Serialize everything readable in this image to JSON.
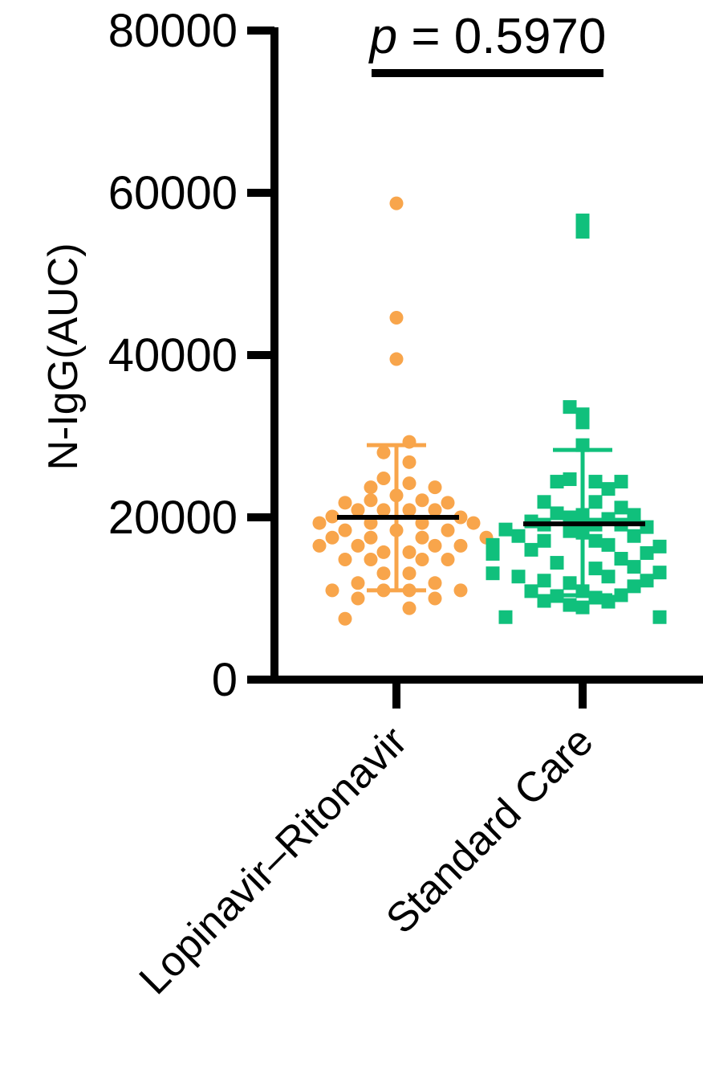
{
  "chart_data": {
    "type": "scatter",
    "ylabel": "N-IgG(AUC)",
    "ylim": [
      0,
      80000
    ],
    "yticks": [
      0,
      20000,
      40000,
      60000,
      80000
    ],
    "ytick_labels": [
      "0",
      "20000",
      "40000",
      "60000",
      "80000"
    ],
    "categories": [
      "Lopinavir–Ritonavir",
      "Standard Care"
    ],
    "annotation": {
      "p_symbol": "p",
      "p_text": " = 0.5970"
    },
    "colors": {
      "lopinavir": "#f8a54b",
      "standard": "#10c07c",
      "axis": "#000000"
    },
    "series": [
      {
        "marker": "circle",
        "color": "#f8a54b",
        "mean": 20000,
        "sd_upper": 28900,
        "sd_lower": 11000,
        "points": [
          {
            "dx": 0,
            "y": 58700
          },
          {
            "dx": 0,
            "y": 44600
          },
          {
            "dx": 0,
            "y": 39500
          },
          {
            "dx": 1,
            "y": 29300
          },
          {
            "dx": -1,
            "y": 28000
          },
          {
            "dx": 1,
            "y": 26800
          },
          {
            "dx": -1,
            "y": 24800
          },
          {
            "dx": 1,
            "y": 24200
          },
          {
            "dx": -2,
            "y": 23700
          },
          {
            "dx": 3,
            "y": 23700
          },
          {
            "dx": 0,
            "y": 22700
          },
          {
            "dx": -2,
            "y": 22100
          },
          {
            "dx": 2,
            "y": 22100
          },
          {
            "dx": -4,
            "y": 21800
          },
          {
            "dx": 4,
            "y": 21800
          },
          {
            "dx": -3,
            "y": 20900
          },
          {
            "dx": -1,
            "y": 20900
          },
          {
            "dx": 1,
            "y": 20900
          },
          {
            "dx": 3,
            "y": 20900
          },
          {
            "dx": -5,
            "y": 20100
          },
          {
            "dx": 5,
            "y": 20000
          },
          {
            "dx": -6,
            "y": 19300
          },
          {
            "dx": 6,
            "y": 19300
          },
          {
            "dx": -2,
            "y": 19300
          },
          {
            "dx": 2,
            "y": 19300
          },
          {
            "dx": -4,
            "y": 18400
          },
          {
            "dx": 0,
            "y": 18400
          },
          {
            "dx": 4,
            "y": 18400
          },
          {
            "dx": -5,
            "y": 17500
          },
          {
            "dx": 7,
            "y": 17500
          },
          {
            "dx": -2,
            "y": 17500
          },
          {
            "dx": 2,
            "y": 17500
          },
          {
            "dx": -3,
            "y": 16500
          },
          {
            "dx": 3,
            "y": 16500
          },
          {
            "dx": -6,
            "y": 16500
          },
          {
            "dx": 5,
            "y": 16500
          },
          {
            "dx": -1,
            "y": 15700
          },
          {
            "dx": 1,
            "y": 15700
          },
          {
            "dx": -2,
            "y": 14800
          },
          {
            "dx": 2,
            "y": 14800
          },
          {
            "dx": -4,
            "y": 14800
          },
          {
            "dx": 4,
            "y": 14800
          },
          {
            "dx": -1,
            "y": 13100
          },
          {
            "dx": 1,
            "y": 13100
          },
          {
            "dx": -3,
            "y": 11900
          },
          {
            "dx": 3,
            "y": 11900
          },
          {
            "dx": -5,
            "y": 11000
          },
          {
            "dx": 5,
            "y": 11000
          },
          {
            "dx": -1,
            "y": 11000
          },
          {
            "dx": 1,
            "y": 11000
          },
          {
            "dx": -3,
            "y": 10000
          },
          {
            "dx": 3,
            "y": 10000
          },
          {
            "dx": 1,
            "y": 8800
          },
          {
            "dx": -4,
            "y": 7500
          }
        ]
      },
      {
        "marker": "square",
        "color": "#10c07c",
        "mean": 19200,
        "sd_upper": 28300,
        "sd_lower": 10400,
        "points": [
          {
            "dx": 0,
            "y": 56600
          },
          {
            "dx": 0,
            "y": 55200
          },
          {
            "dx": -1,
            "y": 33600
          },
          {
            "dx": 0,
            "y": 32700
          },
          {
            "dx": 0,
            "y": 31700
          },
          {
            "dx": 0,
            "y": 28900
          },
          {
            "dx": -1,
            "y": 24700
          },
          {
            "dx": -2,
            "y": 24400
          },
          {
            "dx": 1,
            "y": 24400
          },
          {
            "dx": 3,
            "y": 24400
          },
          {
            "dx": 2,
            "y": 23500
          },
          {
            "dx": -3,
            "y": 21900
          },
          {
            "dx": 1,
            "y": 21900
          },
          {
            "dx": 3,
            "y": 21200
          },
          {
            "dx": -2,
            "y": 20500
          },
          {
            "dx": 0,
            "y": 20300
          },
          {
            "dx": 4,
            "y": 20300
          },
          {
            "dx": -1,
            "y": 20000
          },
          {
            "dx": 2,
            "y": 19800
          },
          {
            "dx": -4,
            "y": 19500
          },
          {
            "dx": -3,
            "y": 19100
          },
          {
            "dx": 1,
            "y": 19100
          },
          {
            "dx": 3,
            "y": 19100
          },
          {
            "dx": 5,
            "y": 18800
          },
          {
            "dx": -6,
            "y": 18500
          },
          {
            "dx": -1,
            "y": 18300
          },
          {
            "dx": 0,
            "y": 18100
          },
          {
            "dx": -5,
            "y": 17700
          },
          {
            "dx": 4,
            "y": 17700
          },
          {
            "dx": -3,
            "y": 17100
          },
          {
            "dx": 1,
            "y": 17100
          },
          {
            "dx": 2,
            "y": 16600
          },
          {
            "dx": -7,
            "y": 16600
          },
          {
            "dx": 6,
            "y": 16400
          },
          {
            "dx": -4,
            "y": 16000
          },
          {
            "dx": 5,
            "y": 15600
          },
          {
            "dx": -7,
            "y": 15500
          },
          {
            "dx": 3,
            "y": 14900
          },
          {
            "dx": -2,
            "y": 14400
          },
          {
            "dx": 4,
            "y": 13900
          },
          {
            "dx": 1,
            "y": 13700
          },
          {
            "dx": 6,
            "y": 13200
          },
          {
            "dx": -7,
            "y": 13100
          },
          {
            "dx": -5,
            "y": 12700
          },
          {
            "dx": 2,
            "y": 12700
          },
          {
            "dx": -3,
            "y": 12200
          },
          {
            "dx": 5,
            "y": 12200
          },
          {
            "dx": -1,
            "y": 11900
          },
          {
            "dx": 4,
            "y": 11500
          },
          {
            "dx": -4,
            "y": 10900
          },
          {
            "dx": 0,
            "y": 10900
          },
          {
            "dx": 3,
            "y": 10400
          },
          {
            "dx": -2,
            "y": 10300
          },
          {
            "dx": 1,
            "y": 10100
          },
          {
            "dx": -3,
            "y": 9700
          },
          {
            "dx": 2,
            "y": 9600
          },
          {
            "dx": -1,
            "y": 9200
          },
          {
            "dx": 0,
            "y": 8900
          },
          {
            "dx": -6,
            "y": 7700
          },
          {
            "dx": 6,
            "y": 7700
          }
        ]
      }
    ]
  }
}
